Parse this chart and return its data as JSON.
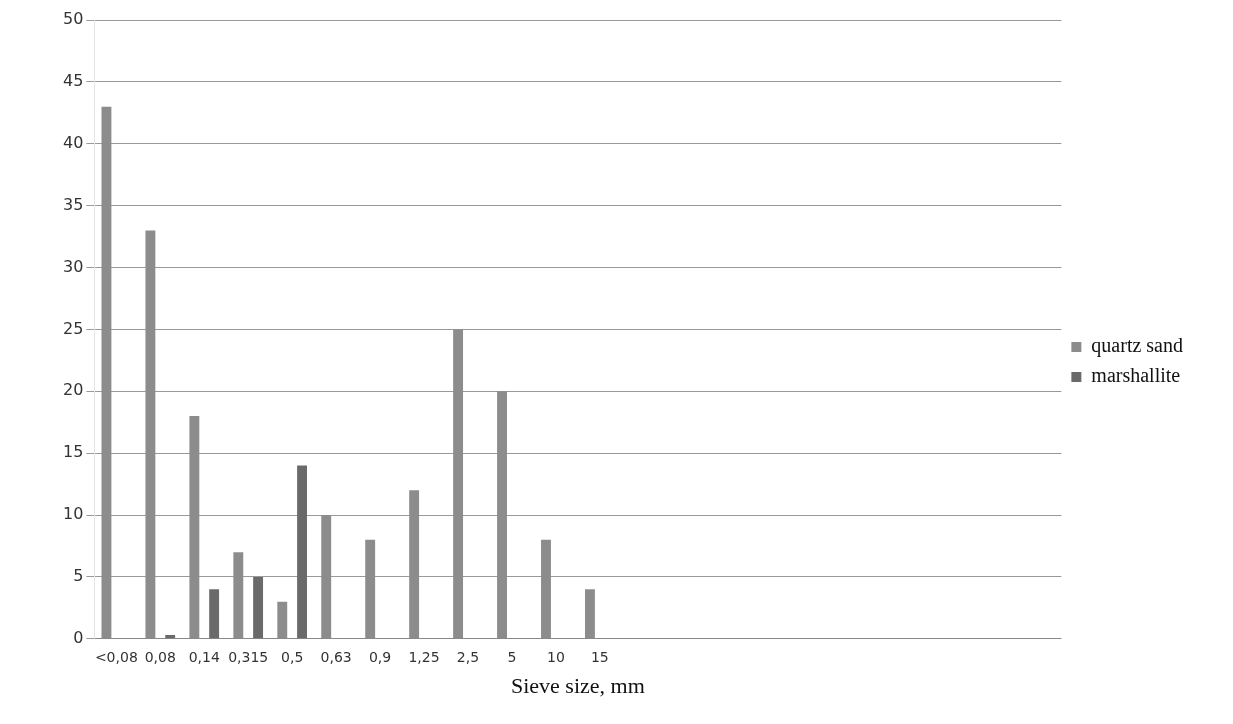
{
  "chart_data": {
    "type": "bar",
    "xlabel": "Sieve size, mm",
    "categories": [
      "<0,08",
      "0,08",
      "0,14",
      "0,315",
      "0,5",
      "0,63",
      "0,9",
      "1,25",
      "2,5",
      "5",
      "10",
      "15",
      null,
      null,
      null,
      null,
      null,
      null,
      null,
      null,
      null,
      null
    ],
    "series": [
      {
        "name": "quartz sand",
        "color": "#8c8c8c",
        "values": [
          43,
          33,
          18,
          7,
          3,
          10,
          8,
          12,
          25,
          20,
          8,
          4,
          null,
          null,
          null,
          null,
          null,
          null,
          null,
          null,
          null,
          null
        ]
      },
      {
        "name": "marshallite",
        "color": "#6a6a6a",
        "values": [
          null,
          0.3,
          4,
          5,
          14,
          null,
          null,
          null,
          null,
          null,
          null,
          null,
          null,
          null,
          null,
          null,
          null,
          null,
          null,
          null,
          null,
          null
        ]
      }
    ],
    "ylim": [
      0,
      50
    ],
    "yticks": [
      0,
      5,
      10,
      15,
      20,
      25,
      30,
      35,
      40,
      45,
      50
    ],
    "grid": "y",
    "legend": "right"
  }
}
